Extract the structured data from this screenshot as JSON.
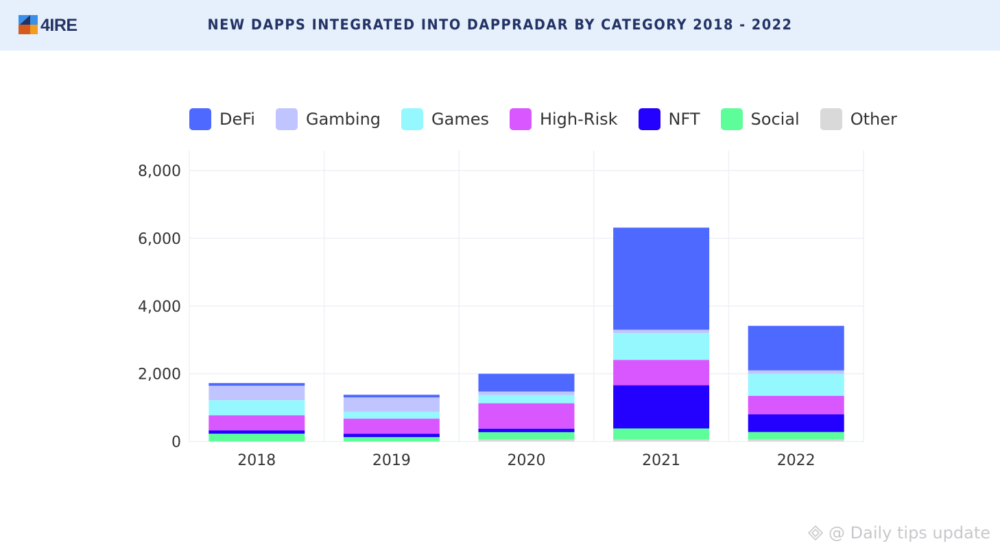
{
  "header": {
    "logo_text": "4IRE",
    "title": "NEW DAPPS INTEGRATED INTO DAPPRADAR BY CATEGORY 2018 - 2022",
    "background_color": "#e6f0fc",
    "title_color": "#243366"
  },
  "watermark": {
    "icon": "binance-diamond-icon",
    "text": "@ Daily tips update"
  },
  "chart_data": {
    "type": "bar",
    "stacked": true,
    "title": "NEW DAPPS INTEGRATED INTO DAPPRADAR BY CATEGORY 2018 - 2022",
    "xlabel": "",
    "ylabel": "",
    "categories": [
      "2018",
      "2019",
      "2020",
      "2021",
      "2022"
    ],
    "ylim": [
      0,
      8000
    ],
    "yticks": [
      0,
      2000,
      4000,
      6000,
      8000
    ],
    "ytick_labels": [
      "0",
      "2,000",
      "4,000",
      "6,000",
      "8,000"
    ],
    "grid": true,
    "legend_position": "top",
    "series": [
      {
        "name": "Other",
        "color": "#d9d9d9",
        "values": [
          0,
          0,
          60,
          60,
          60
        ]
      },
      {
        "name": "Social",
        "color": "#5dfe9a",
        "values": [
          230,
          130,
          215,
          325,
          220
        ]
      },
      {
        "name": "NFT",
        "color": "#2400ff",
        "values": [
          100,
          100,
          105,
          1275,
          525
        ]
      },
      {
        "name": "High-Risk",
        "color": "#d957ff",
        "values": [
          445,
          445,
          750,
          750,
          545
        ]
      },
      {
        "name": "Games",
        "color": "#95f8ff",
        "values": [
          445,
          200,
          245,
          790,
          650
        ]
      },
      {
        "name": "Gambing",
        "color": "#c0c5ff",
        "values": [
          425,
          425,
          100,
          100,
          100
        ]
      },
      {
        "name": "DeFi",
        "color": "#4d69ff",
        "values": [
          80,
          80,
          525,
          3015,
          1315
        ]
      }
    ],
    "legend_order": [
      "DeFi",
      "Gambing",
      "Games",
      "High-Risk",
      "NFT",
      "Social",
      "Other"
    ]
  }
}
